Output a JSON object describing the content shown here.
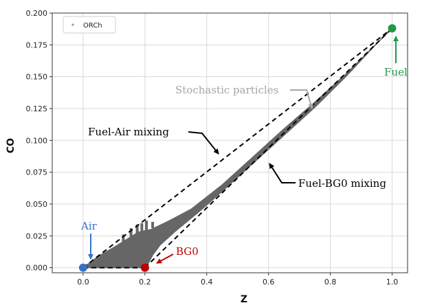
{
  "chart_data": {
    "type": "scatter",
    "xlabel": "Z",
    "ylabel": "CO",
    "xlim": [
      -0.1,
      1.05
    ],
    "ylim": [
      -0.004,
      0.2
    ],
    "x_ticks": [
      0.0,
      0.2,
      0.4,
      0.6,
      0.8,
      1.0
    ],
    "x_tick_labels": [
      "0.0",
      "0.2",
      "0.4",
      "0.6",
      "0.8",
      "1.0"
    ],
    "y_ticks": [
      0.0,
      0.025,
      0.05,
      0.075,
      0.1,
      0.125,
      0.15,
      0.175,
      0.2
    ],
    "y_tick_labels": [
      "0.000",
      "0.025",
      "0.050",
      "0.075",
      "0.100",
      "0.125",
      "0.150",
      "0.175",
      "0.200"
    ],
    "grid": true,
    "legend": {
      "position": "top-left",
      "entries": [
        "ORCh"
      ]
    },
    "particles": {
      "name": "ORCh",
      "color": "#666666",
      "upper_bound": [
        [
          0.0,
          0.0
        ],
        [
          0.05,
          0.009
        ],
        [
          0.1,
          0.016
        ],
        [
          0.14,
          0.022
        ],
        [
          0.18,
          0.028
        ],
        [
          0.22,
          0.03
        ],
        [
          0.28,
          0.037
        ],
        [
          0.35,
          0.046
        ],
        [
          0.45,
          0.065
        ],
        [
          0.55,
          0.087
        ],
        [
          0.65,
          0.109
        ],
        [
          0.75,
          0.13
        ],
        [
          0.85,
          0.152
        ],
        [
          0.95,
          0.176
        ],
        [
          1.0,
          0.188
        ]
      ],
      "lower_bound": [
        [
          1.0,
          0.188
        ],
        [
          0.95,
          0.176
        ],
        [
          0.85,
          0.15
        ],
        [
          0.75,
          0.126
        ],
        [
          0.65,
          0.104
        ],
        [
          0.55,
          0.082
        ],
        [
          0.45,
          0.06
        ],
        [
          0.38,
          0.045
        ],
        [
          0.3,
          0.029
        ],
        [
          0.25,
          0.018
        ],
        [
          0.225,
          0.01
        ],
        [
          0.21,
          0.003
        ],
        [
          0.2,
          0.0
        ],
        [
          0.0,
          0.0
        ]
      ]
    },
    "mixing_lines": [
      {
        "name": "Fuel-Air mixing",
        "points": [
          [
            0.0,
            0.0
          ],
          [
            1.0,
            0.188
          ]
        ]
      },
      {
        "name": "Fuel-BG0 mixing",
        "points": [
          [
            0.2,
            0.0
          ],
          [
            1.0,
            0.188
          ]
        ]
      },
      {
        "name": "Air-BG0",
        "points": [
          [
            0.0,
            0.0
          ],
          [
            0.2,
            0.0
          ]
        ]
      }
    ],
    "points": [
      {
        "label": "Air",
        "x": 0.0,
        "y": 0.0,
        "color": "#3a6fc9"
      },
      {
        "label": "BG0",
        "x": 0.2,
        "y": 0.0,
        "color": "#c00000"
      },
      {
        "label": "Fuel",
        "x": 1.0,
        "y": 0.188,
        "color": "#1e9a48"
      }
    ],
    "annotations": [
      {
        "text": "Stochastic particles",
        "color": "#a6a6a6"
      },
      {
        "text": "Fuel-Air mixing",
        "color": "#000000"
      },
      {
        "text": "Fuel-BG0 mixing",
        "color": "#000000"
      },
      {
        "text": "Air",
        "color": "#3a6fc9"
      },
      {
        "text": "BG0",
        "color": "#c00000"
      },
      {
        "text": "Fuel",
        "color": "#1e9a48"
      }
    ]
  }
}
